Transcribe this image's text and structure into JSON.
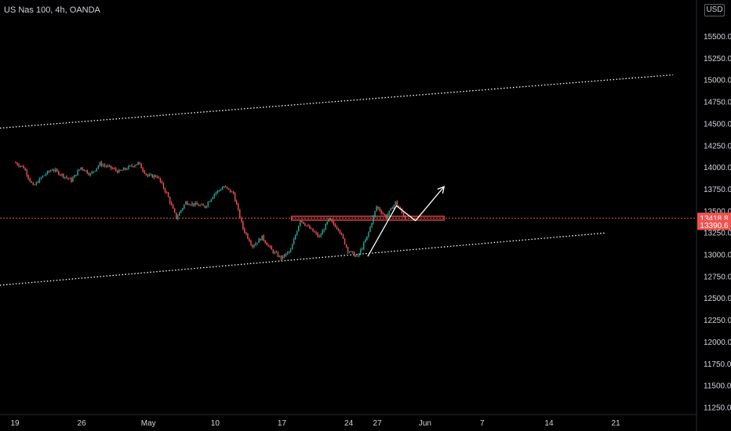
{
  "header": {
    "symbol": "US Nas 100, 4h, OANDA",
    "currency": "USD"
  },
  "colors": {
    "up": "#26a69a",
    "down": "#ef5350",
    "background": "#000000",
    "text": "#d1d4dc",
    "price_line": "#ef5350",
    "trend_line": "#ffffff",
    "zone_border": "#ef5350"
  },
  "chart_data": {
    "type": "candlestick",
    "title": "US Nas 100, 4h, OANDA",
    "y_axis": {
      "ticks": [
        11250,
        11500,
        11750,
        12000,
        12250,
        12500,
        12750,
        13000,
        13250,
        13500,
        13750,
        14000,
        14250,
        14500,
        14750,
        15000,
        15250,
        15500
      ],
      "tick_labels": [
        "11250.0",
        "11500.0",
        "11750.0",
        "12000.0",
        "12250.0",
        "12500.0",
        "12750.0",
        "13000.0",
        "13250.0",
        "13500.0",
        "13750.0",
        "14000.0",
        "14250.0",
        "14500.0",
        "14750.0",
        "15000.0",
        "15250.0",
        "15500.0"
      ],
      "range": [
        11210,
        15700
      ]
    },
    "x_axis": {
      "tick_labels": [
        "19",
        "26",
        "May",
        "10",
        "17",
        "24",
        "27",
        "Jun",
        "7",
        "14",
        "21"
      ],
      "tick_dates": [
        "2021-04-19",
        "2021-04-26",
        "2021-05-03",
        "2021-05-10",
        "2021-05-17",
        "2021-05-24",
        "2021-05-27",
        "2021-06-01",
        "2021-06-07",
        "2021-06-14",
        "2021-06-21"
      ],
      "range": [
        "2021-04-19",
        "2021-06-27"
      ]
    },
    "price_labels": [
      {
        "text": "13418.8",
        "value": 13418.8
      },
      {
        "text": "13390.6",
        "value": 13390.6
      }
    ],
    "ohlc_pivots": [
      [
        "2021-04-19",
        14060
      ],
      [
        "2021-04-20",
        14000
      ],
      [
        "2021-04-21",
        13780
      ],
      [
        "2021-04-22",
        13900
      ],
      [
        "2021-04-23",
        13980
      ],
      [
        "2021-04-25",
        13850
      ],
      [
        "2021-04-26",
        14000
      ],
      [
        "2021-04-27",
        13920
      ],
      [
        "2021-04-28",
        14040
      ],
      [
        "2021-04-29",
        14000
      ],
      [
        "2021-04-30",
        13950
      ],
      [
        "2021-05-02",
        14050
      ],
      [
        "2021-05-03",
        13900
      ],
      [
        "2021-05-04",
        13900
      ],
      [
        "2021-05-05",
        13700
      ],
      [
        "2021-05-06",
        13420
      ],
      [
        "2021-05-07",
        13600
      ],
      [
        "2021-05-09",
        13550
      ],
      [
        "2021-05-10",
        13700
      ],
      [
        "2021-05-11",
        13780
      ],
      [
        "2021-05-12",
        13700
      ],
      [
        "2021-05-13",
        13300
      ],
      [
        "2021-05-14",
        13100
      ],
      [
        "2021-05-15",
        13200
      ],
      [
        "2021-05-16",
        13050
      ],
      [
        "2021-05-17",
        12960
      ],
      [
        "2021-05-18",
        13050
      ],
      [
        "2021-05-19",
        13400
      ],
      [
        "2021-05-20",
        13300
      ],
      [
        "2021-05-21",
        13200
      ],
      [
        "2021-05-22",
        13400
      ],
      [
        "2021-05-23",
        13300
      ],
      [
        "2021-05-24",
        13050
      ],
      [
        "2021-05-25",
        12970
      ],
      [
        "2021-05-26",
        13200
      ],
      [
        "2021-05-27",
        13550
      ],
      [
        "2021-05-28",
        13430
      ],
      [
        "2021-05-29",
        13600
      ],
      [
        "2021-05-30",
        13418.8
      ]
    ],
    "drawings": {
      "upper_channel": [
        [
          "2021-04-19",
          14450
        ],
        [
          "2021-06-27",
          15060
        ]
      ],
      "lower_channel": [
        [
          "2021-04-19",
          12650
        ],
        [
          "2021-06-20",
          13250
        ]
      ],
      "resistance_zone": {
        "from": "2021-05-18",
        "to": "2021-06-03",
        "top": 13440,
        "bottom": 13395
      },
      "arrow_path": [
        [
          "2021-05-26",
          12980
        ],
        [
          "2021-05-29",
          13560
        ],
        [
          "2021-05-31",
          13390
        ],
        [
          "2021-06-03",
          13780
        ]
      ]
    }
  }
}
